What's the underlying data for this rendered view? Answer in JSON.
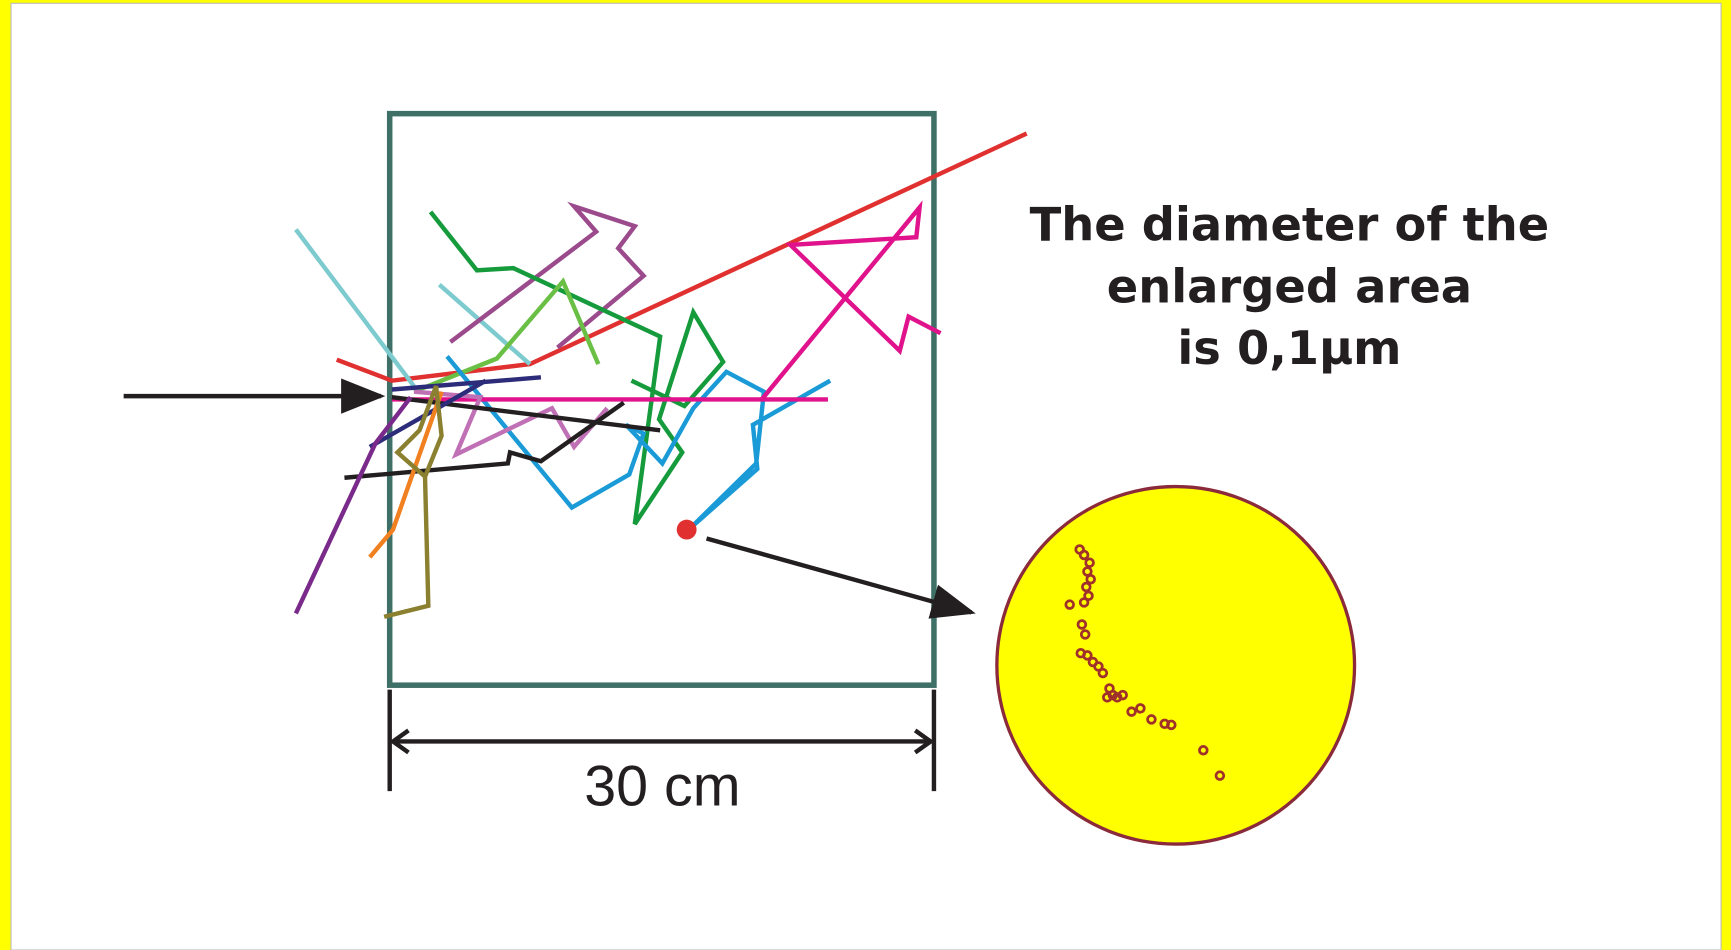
{
  "annotation": {
    "lines": [
      "The diameter of the",
      "enlarged area",
      "is 0,1µm"
    ]
  },
  "dimension_label": "30 cm"
}
